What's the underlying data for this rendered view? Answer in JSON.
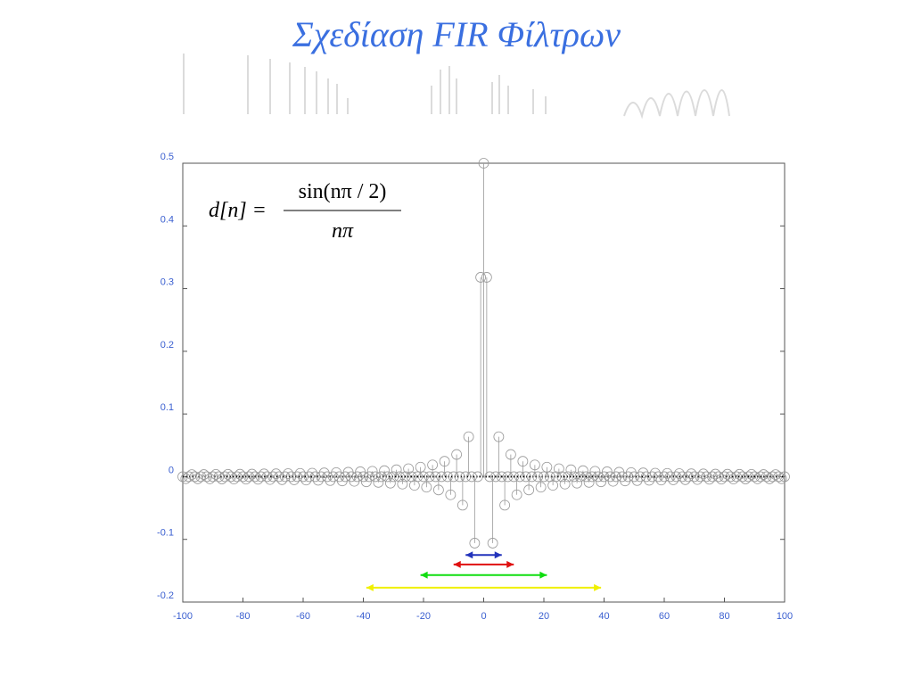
{
  "title": "Σχεδίαση  FIR Φίλτρων",
  "chart_data": {
    "type": "stem",
    "formula": {
      "lhs": "d[n] =",
      "numerator": "sin(nπ / 2)",
      "denominator": "nπ"
    },
    "x": [
      -100,
      -99,
      -98,
      -97,
      -96,
      -95,
      -94,
      -93,
      -92,
      -91,
      -90,
      -89,
      -88,
      -87,
      -86,
      -85,
      -84,
      -83,
      -82,
      -81,
      -80,
      -79,
      -78,
      -77,
      -76,
      -75,
      -74,
      -73,
      -72,
      -71,
      -70,
      -69,
      -68,
      -67,
      -66,
      -65,
      -64,
      -63,
      -62,
      -61,
      -60,
      -59,
      -58,
      -57,
      -56,
      -55,
      -54,
      -53,
      -52,
      -51,
      -50,
      -49,
      -48,
      -47,
      -46,
      -45,
      -44,
      -43,
      -42,
      -41,
      -40,
      -39,
      -38,
      -37,
      -36,
      -35,
      -34,
      -33,
      -32,
      -31,
      -30,
      -29,
      -28,
      -27,
      -26,
      -25,
      -24,
      -23,
      -22,
      -21,
      -20,
      -19,
      -18,
      -17,
      -16,
      -15,
      -14,
      -13,
      -12,
      -11,
      -10,
      -9,
      -8,
      -7,
      -6,
      -5,
      -4,
      -3,
      -2,
      -1,
      0,
      1,
      2,
      3,
      4,
      5,
      6,
      7,
      8,
      9,
      10,
      11,
      12,
      13,
      14,
      15,
      16,
      17,
      18,
      19,
      20,
      21,
      22,
      23,
      24,
      25,
      26,
      27,
      28,
      29,
      30,
      31,
      32,
      33,
      34,
      35,
      36,
      37,
      38,
      39,
      40,
      41,
      42,
      43,
      44,
      45,
      46,
      47,
      48,
      49,
      50,
      51,
      52,
      53,
      54,
      55,
      56,
      57,
      58,
      59,
      60,
      61,
      62,
      63,
      64,
      65,
      66,
      67,
      68,
      69,
      70,
      71,
      72,
      73,
      74,
      75,
      76,
      77,
      78,
      79,
      80,
      81,
      82,
      83,
      84,
      85,
      86,
      87,
      88,
      89,
      90,
      91,
      92,
      93,
      94,
      95,
      96,
      97,
      98,
      99,
      100
    ],
    "values": [
      0,
      -0.0032,
      0,
      0.0033,
      0,
      -0.0034,
      0,
      0.0034,
      0,
      -0.0035,
      0,
      0.0036,
      0,
      -0.0037,
      0,
      0.0037,
      0,
      -0.0038,
      0,
      0.0039,
      0,
      -0.004,
      0,
      0.0041,
      0,
      -0.0042,
      0,
      0.0044,
      0,
      -0.0045,
      0,
      0.0046,
      0,
      -0.0048,
      0,
      0.0049,
      0,
      -0.0051,
      0,
      0.0052,
      0,
      -0.0054,
      0,
      0.0056,
      0,
      -0.0058,
      0,
      0.006,
      0,
      -0.0062,
      0,
      0.0065,
      0,
      -0.0068,
      0,
      0.0071,
      0,
      -0.0074,
      0,
      0.0078,
      0,
      -0.0082,
      0,
      0.0086,
      0,
      -0.0091,
      0,
      0.0096,
      0,
      -0.0103,
      0,
      0.011,
      0,
      -0.0118,
      0,
      0.0127,
      0,
      -0.0138,
      0,
      0.0152,
      0,
      -0.0168,
      0,
      0.0187,
      0,
      -0.0212,
      0,
      0.0245,
      0,
      -0.0289,
      0,
      0.0354,
      0,
      -0.0455,
      0,
      0.0637,
      0,
      -0.106,
      0,
      0.318,
      0.5,
      0.318,
      0,
      -0.106,
      0,
      0.0637,
      0,
      -0.0455,
      0,
      0.0354,
      0,
      -0.0289,
      0,
      0.0245,
      0,
      -0.0212,
      0,
      0.0187,
      0,
      -0.0168,
      0,
      0.0152,
      0,
      -0.0138,
      0,
      0.0127,
      0,
      -0.0118,
      0,
      0.011,
      0,
      -0.0103,
      0,
      0.0096,
      0,
      -0.0091,
      0,
      0.0086,
      0,
      -0.0082,
      0,
      0.0078,
      0,
      -0.0074,
      0,
      0.0071,
      0,
      -0.0068,
      0,
      0.0065,
      0,
      -0.0062,
      0,
      0.006,
      0,
      -0.0058,
      0,
      0.0056,
      0,
      -0.0054,
      0,
      0.0052,
      0,
      -0.0051,
      0,
      0.0049,
      0,
      -0.0048,
      0,
      0.0046,
      0,
      -0.0045,
      0,
      0.0044,
      0,
      -0.0042,
      0,
      0.0041,
      0,
      -0.004,
      0,
      0.0039,
      0,
      -0.0038,
      0,
      0.0037,
      0,
      -0.0037,
      0,
      0.0036,
      0,
      -0.0035,
      0,
      0.0034,
      0,
      -0.0034,
      0,
      0.0033,
      0,
      -0.0032,
      0
    ],
    "color": "#999999",
    "ranges": [
      {
        "color": "#2233bb",
        "x": [
          -6,
          6
        ],
        "y": -0.125
      },
      {
        "color": "#e01010",
        "x": [
          -10,
          10
        ],
        "y": -0.14
      },
      {
        "color": "#10dd10",
        "x": [
          -21,
          21
        ],
        "y": -0.157
      },
      {
        "color": "#f0f000",
        "x": [
          -39,
          39
        ],
        "y": -0.177
      }
    ],
    "xlim": [
      -100,
      100
    ],
    "xticks": [
      -100,
      -80,
      -60,
      -40,
      -20,
      0,
      20,
      40,
      60,
      80,
      100
    ],
    "ylim": [
      -0.2,
      0.5
    ],
    "yticks": [
      -0.2,
      -0.1,
      0,
      0.1,
      0.2,
      0.3,
      0.4,
      0.5
    ]
  }
}
